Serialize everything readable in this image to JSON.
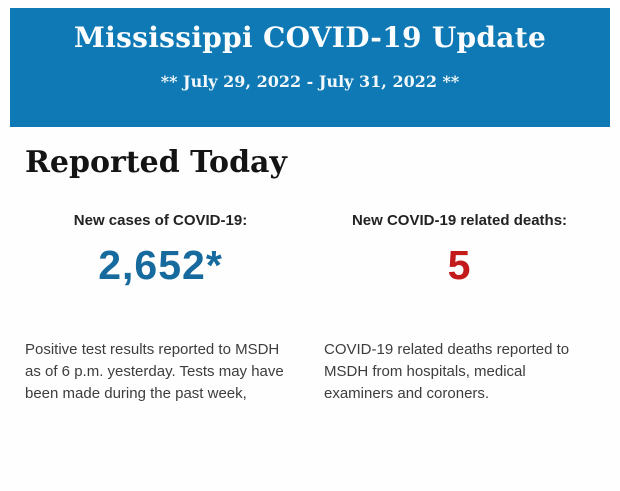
{
  "page": {
    "background_color": "#fefefe"
  },
  "header": {
    "title": "Mississippi COVID-19 Update",
    "date_range": "** July 29, 2022 - July 31, 2022 **",
    "background_color": "#0e79b4",
    "text_color": "#fbfdfe"
  },
  "section": {
    "title": "Reported Today"
  },
  "stats": [
    {
      "label": "New cases of COVID-19:",
      "value": "2,652*",
      "value_color": "#176a9e",
      "description": "Positive test results reported to MSDH as of 6 p.m. yesterday. Tests may have been made during the past week,"
    },
    {
      "label": "New COVID-19 related deaths:",
      "value": "5",
      "value_color": "#c31b1b",
      "description": "COVID-19 related deaths reported to MSDH from hospitals, medical examiners and coroners."
    }
  ]
}
